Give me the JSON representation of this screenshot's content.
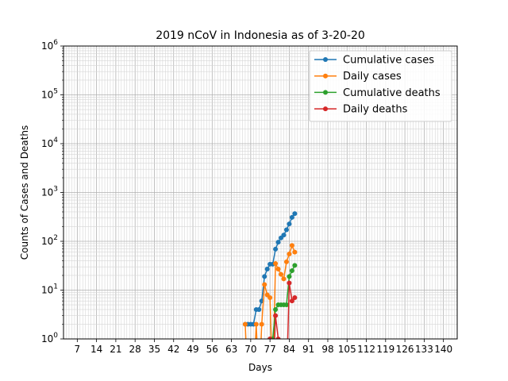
{
  "chart_data": {
    "type": "line",
    "title": "2019 nCoV in Indonesia as of 3-20-20",
    "xlabel": "Days",
    "ylabel": "Counts of Cases and Deaths",
    "xlim": [
      2,
      145
    ],
    "ylim": [
      1,
      1000000
    ],
    "yscale": "log",
    "grid": true,
    "legend_position": "top-right",
    "x_ticks": [
      7,
      14,
      21,
      28,
      35,
      42,
      49,
      56,
      63,
      70,
      77,
      84,
      91,
      98,
      105,
      112,
      119,
      126,
      133,
      140
    ],
    "x_tick_labels": [
      "7",
      "14",
      "21",
      "28",
      "35",
      "42",
      "49",
      "56",
      "63",
      "70",
      "77",
      "84",
      "91",
      "98",
      "105",
      "112",
      "119",
      "126",
      "133",
      "140"
    ],
    "y_ticks": [
      1,
      10,
      100,
      1000,
      10000,
      100000,
      1000000
    ],
    "y_tick_labels": [
      {
        "base": "10",
        "exp": "0"
      },
      {
        "base": "10",
        "exp": "1"
      },
      {
        "base": "10",
        "exp": "2"
      },
      {
        "base": "10",
        "exp": "3"
      },
      {
        "base": "10",
        "exp": "4"
      },
      {
        "base": "10",
        "exp": "5"
      },
      {
        "base": "10",
        "exp": "6"
      }
    ],
    "series": [
      {
        "name": "Cumulative cases",
        "color": "#1f77b4",
        "x": [
          68,
          69,
          70,
          71,
          72,
          73,
          74,
          75,
          76,
          77,
          78,
          79,
          80,
          81,
          82,
          83,
          84,
          85,
          86
        ],
        "y": [
          2,
          2,
          2,
          2,
          4,
          4,
          6,
          19,
          27,
          34,
          34,
          69,
          96,
          117,
          134,
          172,
          227,
          309,
          369
        ]
      },
      {
        "name": "Daily cases",
        "color": "#ff7f0e",
        "x": [
          68,
          69,
          70,
          71,
          72,
          73,
          74,
          75,
          76,
          77,
          78,
          79,
          80,
          81,
          82,
          83,
          84,
          85,
          86
        ],
        "y": [
          2,
          0,
          0,
          0,
          2,
          0,
          2,
          13,
          8,
          7,
          0,
          35,
          27,
          21,
          17,
          38,
          55,
          82,
          60
        ]
      },
      {
        "name": "Cumulative deaths",
        "color": "#2ca02c",
        "x": [
          76,
          77,
          78,
          79,
          80,
          81,
          82,
          83,
          84,
          85,
          86
        ],
        "y": [
          0,
          1,
          1,
          4,
          5,
          5,
          5,
          5,
          19,
          25,
          32
        ]
      },
      {
        "name": "Daily deaths",
        "color": "#d62728",
        "x": [
          77,
          78,
          79,
          80,
          81,
          82,
          83,
          84,
          85,
          86
        ],
        "y": [
          1,
          0,
          3,
          1,
          0,
          0,
          0,
          14,
          6,
          7
        ]
      }
    ]
  }
}
